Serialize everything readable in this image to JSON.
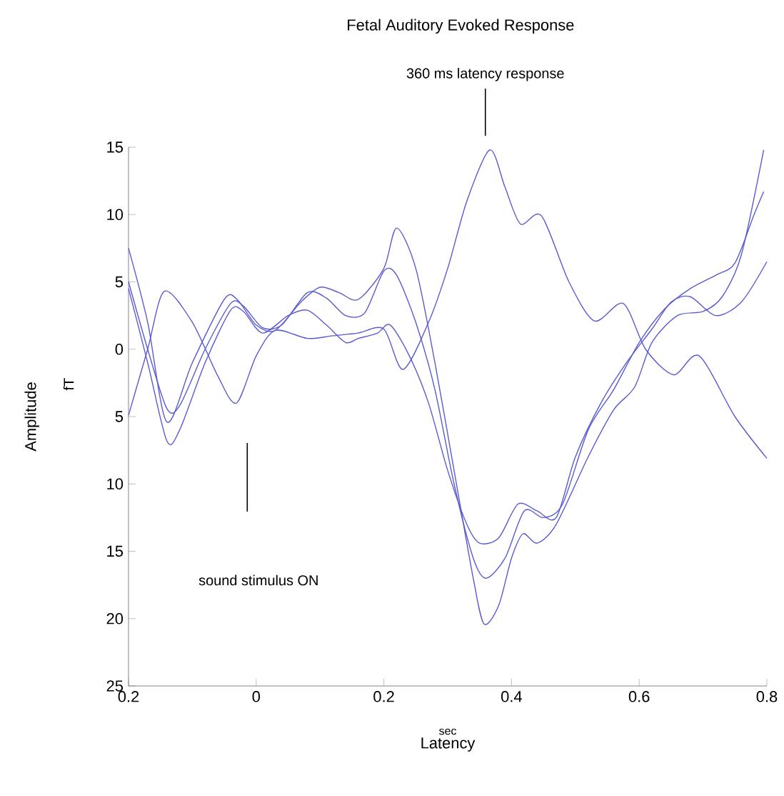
{
  "chart_data": {
    "type": "line",
    "title": "Fetal Auditory Evoked Response",
    "xlabel": "Latency",
    "ylabel": "Amplitude",
    "annotations": [
      "360 ms latency response",
      "sound stimulus ON",
      "sec",
      "fT"
    ],
    "xlim": [
      -0.2,
      0.8
    ],
    "xticks": [
      {
        "value": -0.2,
        "label": "0.2"
      },
      0,
      0.2,
      0.4,
      0.6,
      0.8
    ],
    "ylim": [
      -25,
      15
    ],
    "yticks": [
      {
        "value": -25,
        "label": "25"
      },
      {
        "value": -20,
        "label": "20"
      },
      {
        "value": -15,
        "label": "15"
      },
      {
        "value": -10,
        "label": "10"
      },
      {
        "value": -5,
        "label": "5"
      },
      0,
      5,
      10,
      15
    ],
    "grid": false,
    "marker": "none",
    "line_style": "solid",
    "series": [
      {
        "color": "#5a5ad2",
        "x": [
          -0.2,
          -0.17,
          -0.144,
          -0.1,
          -0.06,
          -0.031,
          0,
          0.03,
          0.08,
          0.12,
          0.16,
          0.2,
          0.23,
          0.27,
          0.3,
          0.33,
          0.366,
          0.39,
          0.414,
          0.447,
          0.49,
          0.53,
          0.575,
          0.61,
          0.654,
          0.694,
          0.75,
          0.8
        ],
        "values": [
          -4.9,
          0,
          4.3,
          2,
          -2,
          -4,
          -0.5,
          1.4,
          0.8,
          1,
          1.2,
          1.5,
          -1.5,
          2,
          6,
          11,
          14.8,
          12,
          9.3,
          9.9,
          5,
          2.1,
          3.4,
          0,
          -1.9,
          -0.5,
          -5,
          -8.1
        ]
      },
      {
        "color": "#5a5ad2",
        "x": [
          -0.2,
          -0.17,
          -0.14,
          -0.1,
          -0.05,
          -0.03,
          0,
          0.03,
          0.07,
          0.1,
          0.13,
          0.16,
          0.2,
          0.22,
          0.25,
          0.28,
          0.31,
          0.34,
          0.357,
          0.38,
          0.4,
          0.418,
          0.44,
          0.47,
          0.52,
          0.56,
          0.593,
          0.62,
          0.66,
          0.7,
          0.73,
          0.76,
          0.795
        ],
        "values": [
          7.5,
          2,
          -5.4,
          -1,
          3.7,
          3.7,
          1.8,
          1.4,
          3.5,
          4.6,
          4.2,
          3.7,
          6,
          9,
          6,
          -1,
          -9,
          -17,
          -20.4,
          -19,
          -15.5,
          -13.7,
          -14.4,
          -13,
          -8,
          -4.5,
          -2.8,
          0.5,
          2.5,
          2.8,
          3.9,
          7,
          14.8
        ]
      },
      {
        "color": "#5a5ad2",
        "x": [
          -0.2,
          -0.17,
          -0.14,
          -0.12,
          -0.08,
          -0.04,
          -0.02,
          0.01,
          0.04,
          0.08,
          0.11,
          0.14,
          0.17,
          0.2,
          0.22,
          0.25,
          0.28,
          0.31,
          0.34,
          0.36,
          0.39,
          0.42,
          0.45,
          0.48,
          0.52,
          0.56,
          0.6,
          0.64,
          0.68,
          0.72,
          0.75,
          0.78,
          0.795
        ],
        "values": [
          5,
          0,
          -4.4,
          -4.2,
          0,
          3.4,
          3.2,
          1.6,
          1.8,
          4.2,
          3.8,
          2.5,
          2.7,
          5.8,
          5.5,
          2,
          -3,
          -10,
          -15.5,
          -17,
          -15.5,
          -12,
          -12.5,
          -11.5,
          -6,
          -3,
          0.5,
          3,
          4.5,
          5.5,
          6.4,
          10,
          11.7
        ]
      },
      {
        "color": "#5a5ad2",
        "x": [
          -0.2,
          -0.17,
          -0.14,
          -0.12,
          -0.08,
          -0.04,
          -0.02,
          0.01,
          0.05,
          0.08,
          0.11,
          0.14,
          0.16,
          0.19,
          0.21,
          0.24,
          0.27,
          0.3,
          0.33,
          0.35,
          0.38,
          0.41,
          0.44,
          0.47,
          0.5,
          0.54,
          0.58,
          0.62,
          0.65,
          0.68,
          0.72,
          0.76,
          0.8
        ],
        "values": [
          4.5,
          -1,
          -6.8,
          -6,
          -1,
          2.9,
          2.8,
          1.2,
          2.5,
          2.9,
          1.8,
          0.5,
          0.8,
          1.2,
          1.8,
          -0.5,
          -4,
          -9,
          -13,
          -14.4,
          -14,
          -11.5,
          -12,
          -12.5,
          -8,
          -4,
          -1,
          1.5,
          3.5,
          3.9,
          2.5,
          3.5,
          6.5
        ]
      }
    ]
  }
}
